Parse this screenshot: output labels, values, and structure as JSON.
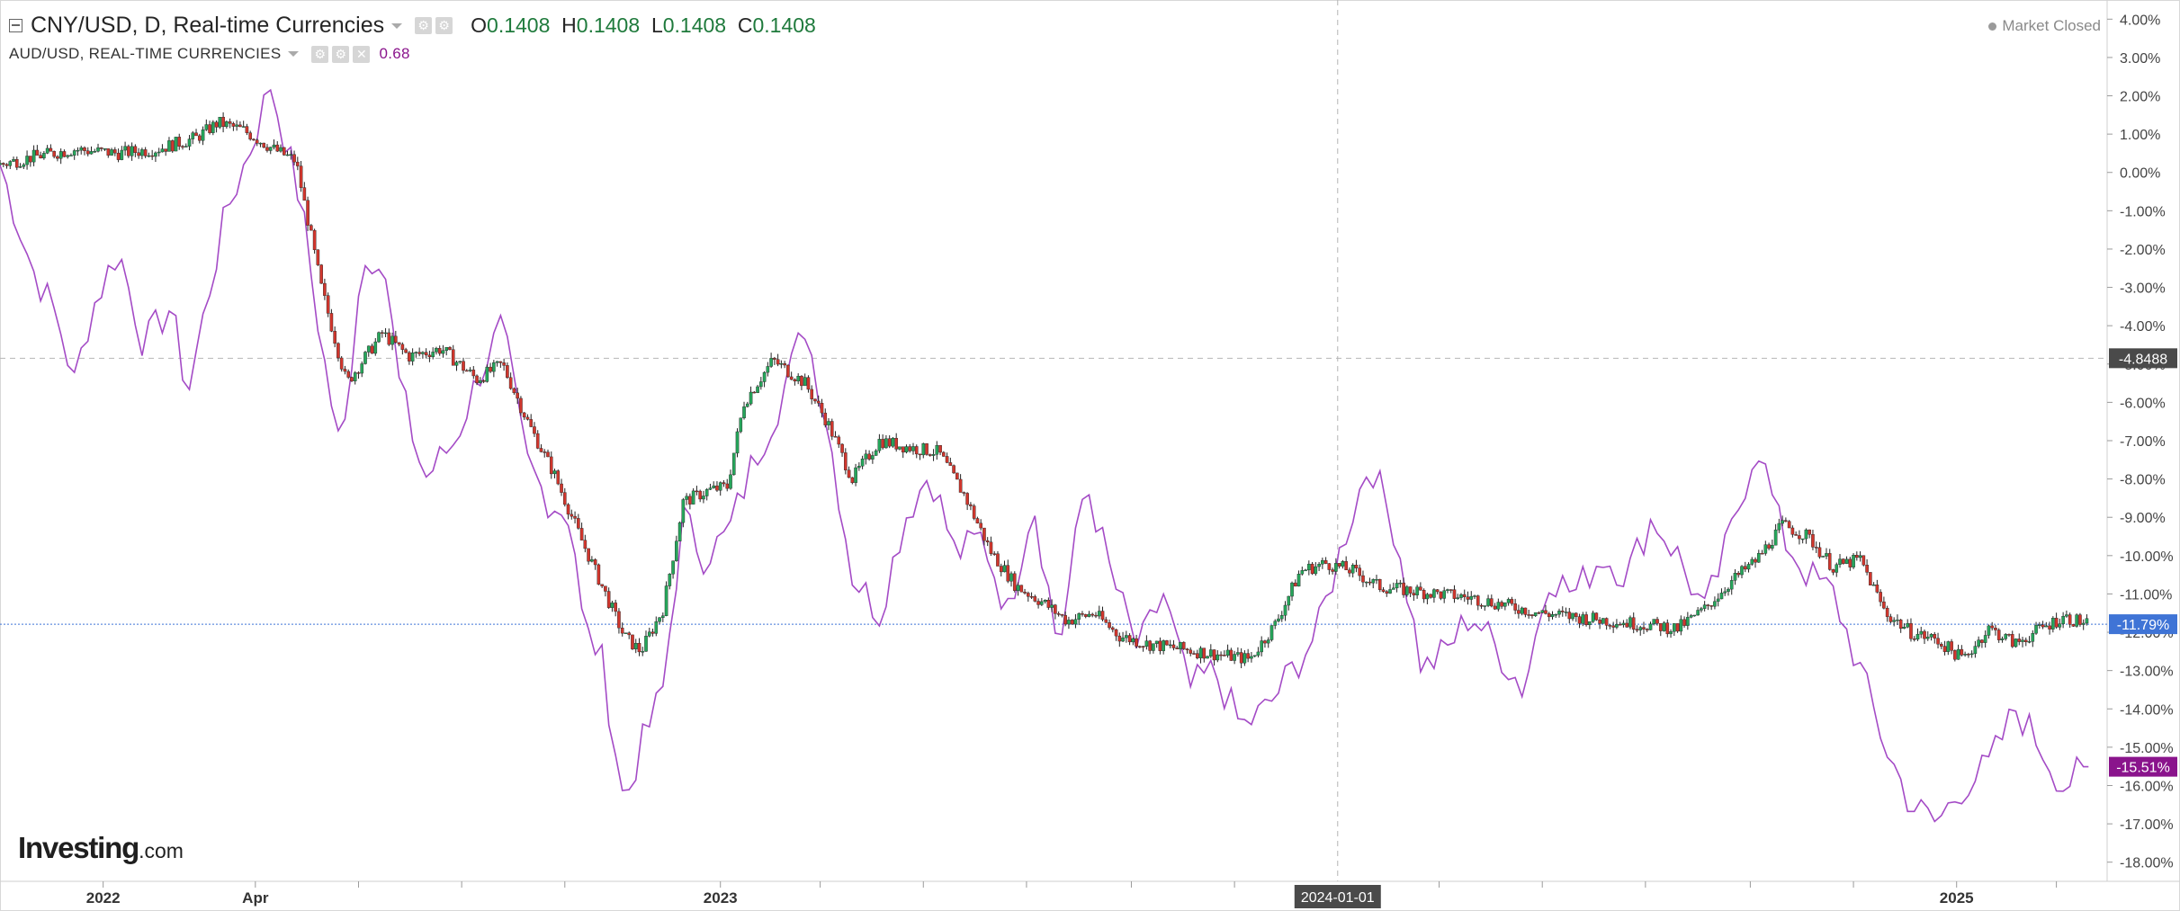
{
  "legend": {
    "main_title": "CNY/USD, D, Real-time Currencies",
    "ohlc": [
      {
        "key": "O",
        "value": "0.1408"
      },
      {
        "key": "H",
        "value": "0.1408"
      },
      {
        "key": "L",
        "value": "0.1408"
      },
      {
        "key": "C",
        "value": "0.1408"
      }
    ],
    "compare_title": "AUD/USD, REAL-TIME CURRENCIES",
    "compare_value": "0.68"
  },
  "market_status": "Market Closed",
  "logo": {
    "text": "Investing",
    "suffix": ".com"
  },
  "crosshair": {
    "x_label": "2024-01-01",
    "y_label": "-4.8488"
  },
  "colors": {
    "up": "#26a65b",
    "down": "#d1362d",
    "compare_line": "#a44bc6",
    "current_line": "#3f74d6",
    "current_badge": "#3f74d6",
    "compare_badge": "#8a148c",
    "crosshair_badge": "#4a4a4a"
  },
  "chart_data": {
    "type": "line",
    "y_axis": {
      "unit": "%",
      "range": [
        -18.5,
        4.5
      ],
      "ticks": [
        "4.00%",
        "3.00%",
        "2.00%",
        "1.00%",
        "0.00%",
        "-1.00%",
        "-2.00%",
        "-3.00%",
        "-4.00%",
        "-5.00%",
        "-6.00%",
        "-7.00%",
        "-8.00%",
        "-9.00%",
        "-10.00%",
        "-11.00%",
        "-12.00%",
        "-13.00%",
        "-14.00%",
        "-15.00%",
        "-16.00%",
        "-17.00%",
        "-18.00%"
      ]
    },
    "x_axis": {
      "range": [
        "2021-11-01",
        "2025-03-31"
      ],
      "ticks": [
        {
          "date": "2022-01-01",
          "label": "2022"
        },
        {
          "date": "2022-04-01",
          "label": "Apr"
        },
        {
          "date": "2023-01-01",
          "label": "2023"
        },
        {
          "date": "2025-01-01",
          "label": "2025"
        }
      ],
      "minor_ticks": [
        "2022-06-01",
        "2022-08-01",
        "2022-10-01",
        "2023-03-01",
        "2023-05-01",
        "2023-07-01",
        "2023-09-01",
        "2023-11-01",
        "2024-03-01",
        "2024-05-01",
        "2024-07-01",
        "2024-09-01",
        "2024-11-01",
        "2025-03-01"
      ]
    },
    "series": [
      {
        "name": "CNY/USD",
        "style": "candlestick",
        "last_value": "-11.79%",
        "x": [
          "2021-11-01",
          "2021-11-20",
          "2021-12-15",
          "2022-01-10",
          "2022-02-01",
          "2022-02-25",
          "2022-03-10",
          "2022-03-25",
          "2022-04-12",
          "2022-04-25",
          "2022-05-10",
          "2022-05-25",
          "2022-06-15",
          "2022-07-01",
          "2022-07-20",
          "2022-08-10",
          "2022-08-25",
          "2022-09-10",
          "2022-09-25",
          "2022-10-10",
          "2022-10-25",
          "2022-11-05",
          "2022-11-15",
          "2022-11-28",
          "2022-12-10",
          "2022-12-25",
          "2023-01-05",
          "2023-01-15",
          "2023-02-01",
          "2023-02-20",
          "2023-03-05",
          "2023-03-20",
          "2023-04-05",
          "2023-04-25",
          "2023-05-10",
          "2023-05-25",
          "2023-06-10",
          "2023-06-25",
          "2023-07-10",
          "2023-07-25",
          "2023-08-10",
          "2023-08-25",
          "2023-09-10",
          "2023-09-25",
          "2023-10-10",
          "2023-10-25",
          "2023-11-10",
          "2023-11-25",
          "2023-12-10",
          "2023-12-25",
          "2024-01-10",
          "2024-01-25",
          "2024-02-10",
          "2024-03-01",
          "2024-03-20",
          "2024-04-10",
          "2024-04-30",
          "2024-05-20",
          "2024-06-10",
          "2024-06-30",
          "2024-07-20",
          "2024-08-05",
          "2024-08-20",
          "2024-09-05",
          "2024-09-20",
          "2024-10-05",
          "2024-10-20",
          "2024-11-05",
          "2024-11-20",
          "2024-12-05",
          "2024-12-20",
          "2025-01-05",
          "2025-01-20",
          "2025-02-05",
          "2025-02-20",
          "2025-03-05",
          "2025-03-20"
        ],
        "values": [
          0.2,
          0.4,
          0.6,
          0.5,
          0.6,
          0.9,
          1.3,
          1.1,
          0.6,
          0.3,
          -3.0,
          -5.5,
          -4.2,
          -4.8,
          -4.6,
          -5.4,
          -5.0,
          -6.6,
          -7.9,
          -9.5,
          -11.0,
          -12.1,
          -12.5,
          -11.4,
          -8.6,
          -8.3,
          -8.2,
          -6.0,
          -4.9,
          -5.5,
          -6.5,
          -8.0,
          -7.0,
          -7.2,
          -7.3,
          -8.4,
          -9.9,
          -10.8,
          -11.2,
          -11.7,
          -11.5,
          -12.1,
          -12.3,
          -12.4,
          -12.5,
          -12.6,
          -12.7,
          -11.8,
          -10.4,
          -10.2,
          -10.4,
          -10.8,
          -10.9,
          -11.0,
          -11.1,
          -11.3,
          -11.5,
          -11.6,
          -11.7,
          -11.8,
          -11.9,
          -11.4,
          -10.7,
          -10.1,
          -9.2,
          -9.5,
          -10.3,
          -10.1,
          -11.5,
          -12.0,
          -12.2,
          -12.7,
          -11.9,
          -12.3,
          -11.9,
          -11.6,
          -11.79
        ]
      },
      {
        "name": "AUD/USD",
        "style": "line",
        "last_value": "-15.51%",
        "x": [
          "2021-11-01",
          "2021-11-20",
          "2021-12-05",
          "2021-12-15",
          "2021-12-25",
          "2022-01-10",
          "2022-01-25",
          "2022-02-10",
          "2022-02-20",
          "2022-03-05",
          "2022-03-15",
          "2022-03-28",
          "2022-04-10",
          "2022-04-28",
          "2022-05-10",
          "2022-05-22",
          "2022-06-02",
          "2022-06-15",
          "2022-06-25",
          "2022-07-10",
          "2022-07-28",
          "2022-08-12",
          "2022-08-25",
          "2022-09-08",
          "2022-09-20",
          "2022-10-05",
          "2022-10-12",
          "2022-10-22",
          "2022-11-05",
          "2022-11-15",
          "2022-11-28",
          "2022-12-10",
          "2022-12-22",
          "2023-01-05",
          "2023-01-20",
          "2023-02-05",
          "2023-02-20",
          "2023-03-05",
          "2023-03-20",
          "2023-04-05",
          "2023-04-20",
          "2023-05-05",
          "2023-05-20",
          "2023-06-05",
          "2023-06-20",
          "2023-07-05",
          "2023-07-20",
          "2023-08-05",
          "2023-08-20",
          "2023-09-05",
          "2023-09-20",
          "2023-10-05",
          "2023-10-20",
          "2023-11-05",
          "2023-11-20",
          "2023-12-05",
          "2023-12-20",
          "2024-01-05",
          "2024-01-20",
          "2024-02-05",
          "2024-02-20",
          "2024-03-05",
          "2024-03-20",
          "2024-04-05",
          "2024-04-20",
          "2024-05-05",
          "2024-05-20",
          "2024-06-05",
          "2024-06-20",
          "2024-07-05",
          "2024-07-20",
          "2024-08-05",
          "2024-08-20",
          "2024-09-05",
          "2024-09-20",
          "2024-10-05",
          "2024-10-20",
          "2024-11-05",
          "2024-11-20",
          "2024-12-05",
          "2024-12-20",
          "2025-01-05",
          "2025-01-20",
          "2025-02-05",
          "2025-02-20",
          "2025-03-05",
          "2025-03-20"
        ],
        "values": [
          0.2,
          -2.5,
          -3.8,
          -5.5,
          -3.6,
          -2.0,
          -4.5,
          -3.5,
          -5.8,
          -3.0,
          -1.0,
          0.5,
          2.3,
          -0.8,
          -4.5,
          -7.5,
          -2.5,
          -2.0,
          -5.5,
          -8.0,
          -7.0,
          -5.2,
          -4.0,
          -7.5,
          -8.5,
          -9.0,
          -12.0,
          -12.5,
          -16.5,
          -15.0,
          -13.5,
          -9.0,
          -10.0,
          -9.5,
          -7.6,
          -6.0,
          -4.0,
          -6.5,
          -10.5,
          -11.5,
          -9.0,
          -7.8,
          -10.0,
          -9.5,
          -11.5,
          -8.5,
          -12.5,
          -8.0,
          -10.5,
          -12.5,
          -11.0,
          -13.5,
          -13.0,
          -14.5,
          -14.0,
          -13.0,
          -12.0,
          -9.5,
          -7.5,
          -9.5,
          -13.0,
          -12.5,
          -11.5,
          -12.5,
          -13.5,
          -10.5,
          -11.0,
          -10.0,
          -10.5,
          -9.0,
          -10.0,
          -11.5,
          -9.5,
          -7.0,
          -9.5,
          -10.5,
          -11.0,
          -13.0,
          -15.0,
          -16.5,
          -17.0,
          -16.0,
          -15.5,
          -14.0,
          -15.0,
          -16.0,
          -15.51
        ]
      }
    ]
  }
}
